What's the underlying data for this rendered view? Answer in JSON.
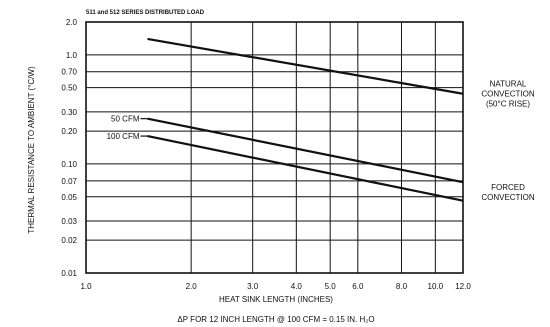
{
  "chart_data": {
    "type": "line",
    "title": "511 and 512 SERIES DISTRIBUTED LOAD",
    "xlabel": "HEAT SINK LENGTH (INCHES)",
    "ylabel": "THERMAL RESISTANCE TO AMBIENT (°C/W)",
    "footnote": "ΔP FOR 12 INCH LENGTH @ 100 CFM = 0.15 IN. H₂O",
    "x_scale": "log",
    "y_scale": "log",
    "xlim": [
      1.0,
      12.0
    ],
    "ylim": [
      0.01,
      2.0
    ],
    "x_ticks": [
      1.0,
      2.0,
      3.0,
      4.0,
      5.0,
      6.0,
      8.0,
      10.0,
      12.0
    ],
    "x_tick_labels": [
      "1.0",
      "2.0",
      "3.0",
      "4.0",
      "5.0",
      "6.0",
      "8.0",
      "10.0",
      "12.0"
    ],
    "y_ticks": [
      0.01,
      0.02,
      0.03,
      0.05,
      0.07,
      0.1,
      0.2,
      0.3,
      0.5,
      0.7,
      1.0,
      2.0
    ],
    "y_tick_labels": [
      "0.01",
      "0.02",
      "0.03",
      "0.05",
      "0.07",
      "0.10",
      "0.20",
      "0.30",
      "0.50",
      "0.70",
      "1.0",
      "2.0"
    ],
    "grid": true,
    "series": [
      {
        "label": "",
        "x": [
          1.5,
          12.0
        ],
        "y": [
          1.4,
          0.44
        ]
      },
      {
        "label": "50 CFM",
        "x": [
          1.5,
          12.0
        ],
        "y": [
          0.26,
          0.068
        ]
      },
      {
        "label": "100 CFM",
        "x": [
          1.5,
          12.0
        ],
        "y": [
          0.18,
          0.046
        ]
      }
    ],
    "annotations": [
      {
        "lines": [
          "NATURAL",
          "CONVECTION",
          "(50°C RISE)"
        ]
      },
      {
        "lines": [
          "FORCED",
          "CONVECTION"
        ]
      }
    ]
  }
}
